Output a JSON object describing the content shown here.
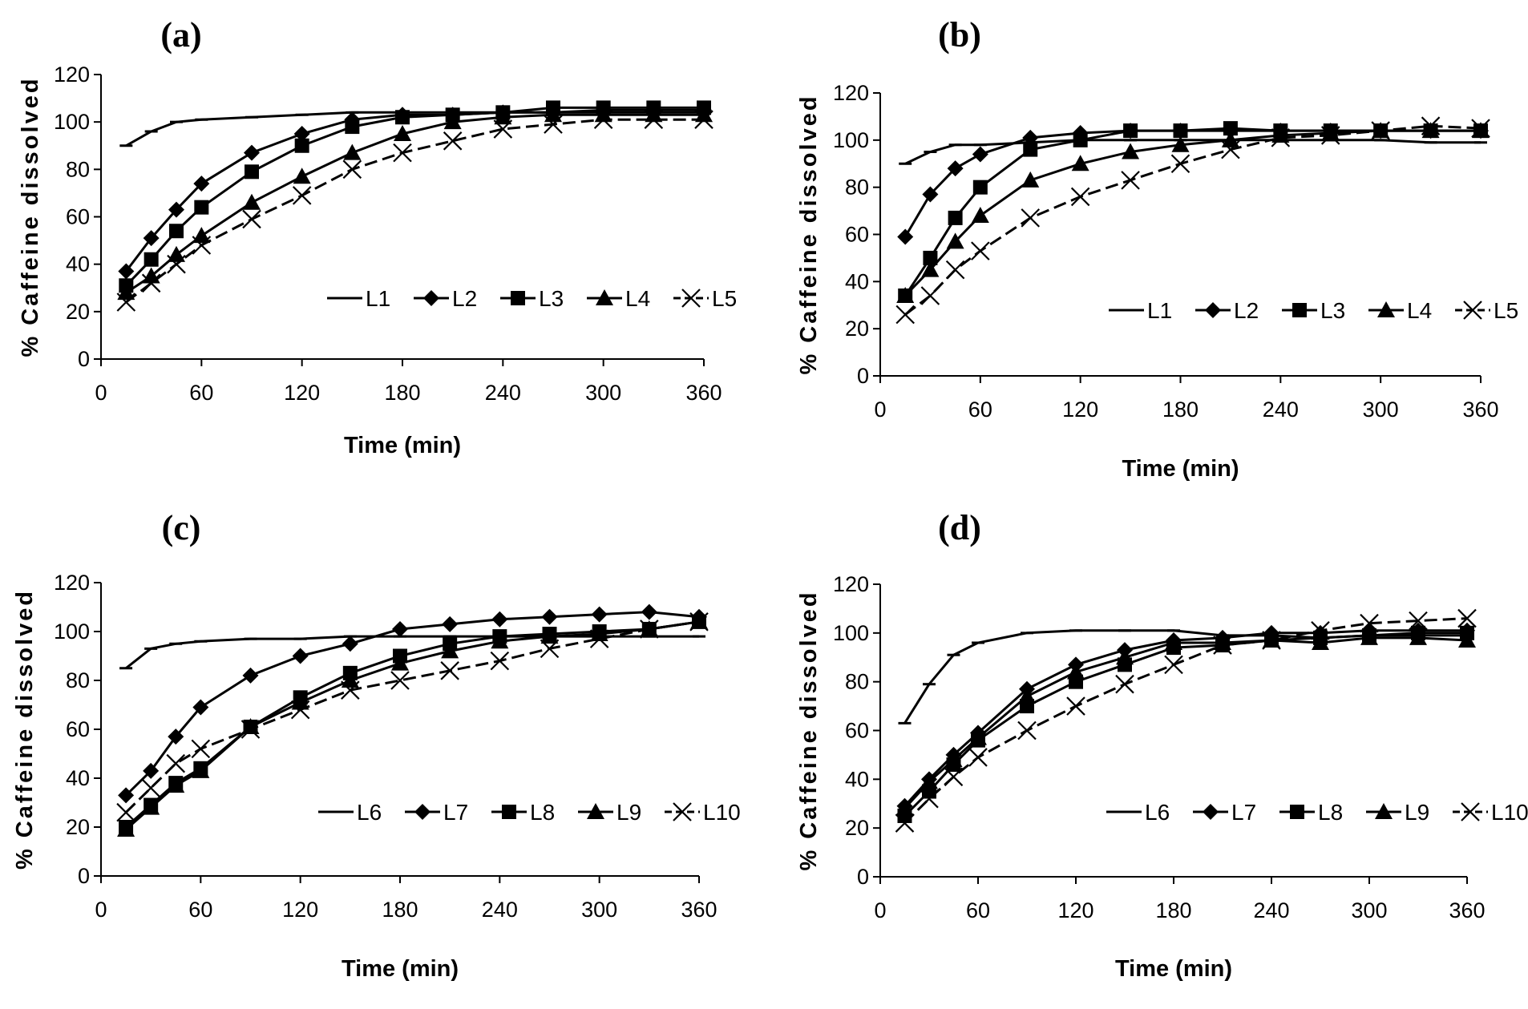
{
  "chart_data": [
    {
      "type": "line",
      "panel_label": "(a)",
      "xlabel": "Time (min)",
      "ylabel": "% Caffeine dissolved",
      "xlim": [
        0,
        360
      ],
      "ylim": [
        0,
        120
      ],
      "xticks": [
        "0",
        "60",
        "120",
        "180",
        "240",
        "300",
        "360"
      ],
      "yticks": [
        "0",
        "20",
        "40",
        "60",
        "80",
        "100",
        "120"
      ],
      "legend_position": "lower-right",
      "series": [
        {
          "name": "L1",
          "marker": "dash",
          "dashed": false,
          "x": [
            15,
            30,
            45,
            60,
            90,
            120,
            150,
            180,
            210,
            240,
            270,
            300,
            330,
            360
          ],
          "values": [
            90,
            96,
            100,
            101,
            102,
            103,
            104,
            104,
            104,
            104,
            104,
            104,
            104,
            104
          ]
        },
        {
          "name": "L2",
          "marker": "diamond",
          "dashed": false,
          "x": [
            15,
            30,
            45,
            60,
            90,
            120,
            150,
            180,
            210,
            240,
            270,
            300,
            330,
            360
          ],
          "values": [
            37,
            51,
            63,
            74,
            87,
            95,
            101,
            103,
            103,
            104,
            104,
            105,
            105,
            105
          ]
        },
        {
          "name": "L3",
          "marker": "square",
          "dashed": false,
          "x": [
            15,
            30,
            45,
            60,
            90,
            120,
            150,
            180,
            210,
            240,
            270,
            300,
            330,
            360
          ],
          "values": [
            31,
            42,
            54,
            64,
            79,
            90,
            98,
            102,
            103,
            104,
            106,
            106,
            106,
            106
          ]
        },
        {
          "name": "L4",
          "marker": "triangle",
          "dashed": false,
          "x": [
            15,
            30,
            45,
            60,
            90,
            120,
            150,
            180,
            210,
            240,
            270,
            300,
            330,
            360
          ],
          "values": [
            28,
            35,
            44,
            52,
            66,
            77,
            87,
            95,
            100,
            102,
            103,
            103,
            103,
            103
          ]
        },
        {
          "name": "L5",
          "marker": "x",
          "dashed": true,
          "x": [
            15,
            30,
            45,
            60,
            90,
            120,
            150,
            180,
            210,
            240,
            270,
            300,
            330,
            360
          ],
          "values": [
            24,
            32,
            40,
            48,
            59,
            69,
            80,
            87,
            92,
            97,
            99,
            101,
            101,
            101
          ]
        }
      ]
    },
    {
      "type": "line",
      "panel_label": "(b)",
      "xlabel": "Time (min)",
      "ylabel": "% Caffeine dissolved",
      "xlim": [
        0,
        360
      ],
      "ylim": [
        0,
        120
      ],
      "xticks": [
        "0",
        "60",
        "120",
        "180",
        "240",
        "300",
        "360"
      ],
      "yticks": [
        "0",
        "20",
        "40",
        "60",
        "80",
        "100",
        "120"
      ],
      "legend_position": "lower-right",
      "series": [
        {
          "name": "L1",
          "marker": "dash",
          "dashed": false,
          "x": [
            15,
            30,
            45,
            60,
            90,
            120,
            150,
            180,
            210,
            240,
            270,
            300,
            330,
            360
          ],
          "values": [
            90,
            95,
            98,
            98,
            99,
            100,
            100,
            100,
            100,
            100,
            100,
            100,
            99,
            99
          ]
        },
        {
          "name": "L2",
          "marker": "diamond",
          "dashed": false,
          "x": [
            15,
            30,
            45,
            60,
            90,
            120,
            150,
            180,
            210,
            240,
            270,
            300,
            330,
            360
          ],
          "values": [
            59,
            77,
            88,
            94,
            101,
            103,
            104,
            104,
            104,
            104,
            104,
            104,
            104,
            104
          ]
        },
        {
          "name": "L3",
          "marker": "square",
          "dashed": false,
          "x": [
            15,
            30,
            45,
            60,
            90,
            120,
            150,
            180,
            210,
            240,
            270,
            300,
            330,
            360
          ],
          "values": [
            34,
            50,
            67,
            80,
            96,
            100,
            104,
            104,
            105,
            104,
            104,
            104,
            104,
            104
          ]
        },
        {
          "name": "L4",
          "marker": "triangle",
          "dashed": false,
          "x": [
            15,
            30,
            45,
            60,
            90,
            120,
            150,
            180,
            210,
            240,
            270,
            300,
            330,
            360
          ],
          "values": [
            34,
            45,
            57,
            68,
            83,
            90,
            95,
            98,
            100,
            102,
            103,
            104,
            104,
            104
          ]
        },
        {
          "name": "L5",
          "marker": "x",
          "dashed": true,
          "x": [
            15,
            30,
            45,
            60,
            90,
            120,
            150,
            180,
            210,
            240,
            270,
            300,
            330,
            360
          ],
          "values": [
            26,
            34,
            45,
            53,
            67,
            76,
            83,
            90,
            96,
            101,
            102,
            104,
            106,
            105
          ]
        }
      ]
    },
    {
      "type": "line",
      "panel_label": "(c)",
      "xlabel": "Time (min)",
      "ylabel": "% Caffeine dissolved",
      "xlim": [
        0,
        360
      ],
      "ylim": [
        0,
        120
      ],
      "xticks": [
        "0",
        "60",
        "120",
        "180",
        "240",
        "300",
        "360"
      ],
      "yticks": [
        "0",
        "20",
        "40",
        "60",
        "80",
        "100",
        "120"
      ],
      "legend_position": "lower-right",
      "series": [
        {
          "name": "L6",
          "marker": "dash",
          "dashed": false,
          "x": [
            15,
            30,
            45,
            60,
            90,
            120,
            150,
            180,
            210,
            240,
            270,
            300,
            330,
            360
          ],
          "values": [
            85,
            93,
            95,
            96,
            97,
            97,
            98,
            98,
            98,
            98,
            98,
            98,
            98,
            98
          ]
        },
        {
          "name": "L7",
          "marker": "diamond",
          "dashed": false,
          "x": [
            15,
            30,
            45,
            60,
            90,
            120,
            150,
            180,
            210,
            240,
            270,
            300,
            330,
            360
          ],
          "values": [
            33,
            43,
            57,
            69,
            82,
            90,
            95,
            101,
            103,
            105,
            106,
            107,
            108,
            106
          ]
        },
        {
          "name": "L8",
          "marker": "square",
          "dashed": false,
          "x": [
            15,
            30,
            45,
            60,
            90,
            120,
            150,
            180,
            210,
            240,
            270,
            300,
            330,
            360
          ],
          "values": [
            20,
            29,
            38,
            44,
            61,
            73,
            83,
            90,
            95,
            98,
            99,
            100,
            101,
            104
          ]
        },
        {
          "name": "L9",
          "marker": "triangle",
          "dashed": false,
          "x": [
            15,
            30,
            45,
            60,
            90,
            120,
            150,
            180,
            210,
            240,
            270,
            300,
            330,
            360
          ],
          "values": [
            19,
            28,
            37,
            43,
            61,
            71,
            80,
            87,
            92,
            96,
            98,
            99,
            101,
            104
          ]
        },
        {
          "name": "L10",
          "marker": "x",
          "dashed": true,
          "x": [
            15,
            30,
            45,
            60,
            90,
            120,
            150,
            180,
            210,
            240,
            270,
            300,
            330,
            360
          ],
          "values": [
            26,
            36,
            46,
            52,
            60,
            68,
            76,
            80,
            84,
            88,
            93,
            97,
            101,
            104
          ]
        }
      ]
    },
    {
      "type": "line",
      "panel_label": "(d)",
      "xlabel": "Time (min)",
      "ylabel": "% Caffeine dissolved",
      "xlim": [
        0,
        360
      ],
      "ylim": [
        0,
        120
      ],
      "xticks": [
        "0",
        "60",
        "120",
        "180",
        "240",
        "300",
        "360"
      ],
      "yticks": [
        "0",
        "20",
        "40",
        "60",
        "80",
        "100",
        "120"
      ],
      "legend_position": "lower-right",
      "series": [
        {
          "name": "L6",
          "marker": "dash",
          "dashed": false,
          "x": [
            15,
            30,
            45,
            60,
            90,
            120,
            150,
            180,
            210,
            240,
            270,
            300,
            330,
            360
          ],
          "values": [
            63,
            79,
            91,
            96,
            100,
            101,
            101,
            101,
            99,
            99,
            98,
            99,
            99,
            99
          ]
        },
        {
          "name": "L7",
          "marker": "diamond",
          "dashed": false,
          "x": [
            15,
            30,
            45,
            60,
            90,
            120,
            150,
            180,
            210,
            240,
            270,
            300,
            330,
            360
          ],
          "values": [
            29,
            40,
            50,
            59,
            77,
            87,
            93,
            97,
            98,
            100,
            100,
            101,
            101,
            101
          ]
        },
        {
          "name": "L8",
          "marker": "square",
          "dashed": false,
          "x": [
            15,
            30,
            45,
            60,
            90,
            120,
            150,
            180,
            210,
            240,
            270,
            300,
            330,
            360
          ],
          "values": [
            25,
            35,
            46,
            56,
            70,
            80,
            87,
            94,
            95,
            97,
            98,
            99,
            100,
            100
          ]
        },
        {
          "name": "L9",
          "marker": "triangle",
          "dashed": false,
          "x": [
            15,
            30,
            45,
            60,
            90,
            120,
            150,
            180,
            210,
            240,
            270,
            300,
            330,
            360
          ],
          "values": [
            28,
            39,
            48,
            57,
            74,
            84,
            90,
            96,
            96,
            97,
            96,
            98,
            98,
            97
          ]
        },
        {
          "name": "L10",
          "marker": "x",
          "dashed": true,
          "x": [
            15,
            30,
            45,
            60,
            90,
            120,
            150,
            180,
            210,
            240,
            270,
            300,
            330,
            360
          ],
          "values": [
            22,
            32,
            41,
            49,
            60,
            70,
            79,
            87,
            95,
            97,
            101,
            104,
            105,
            106
          ]
        }
      ]
    }
  ]
}
